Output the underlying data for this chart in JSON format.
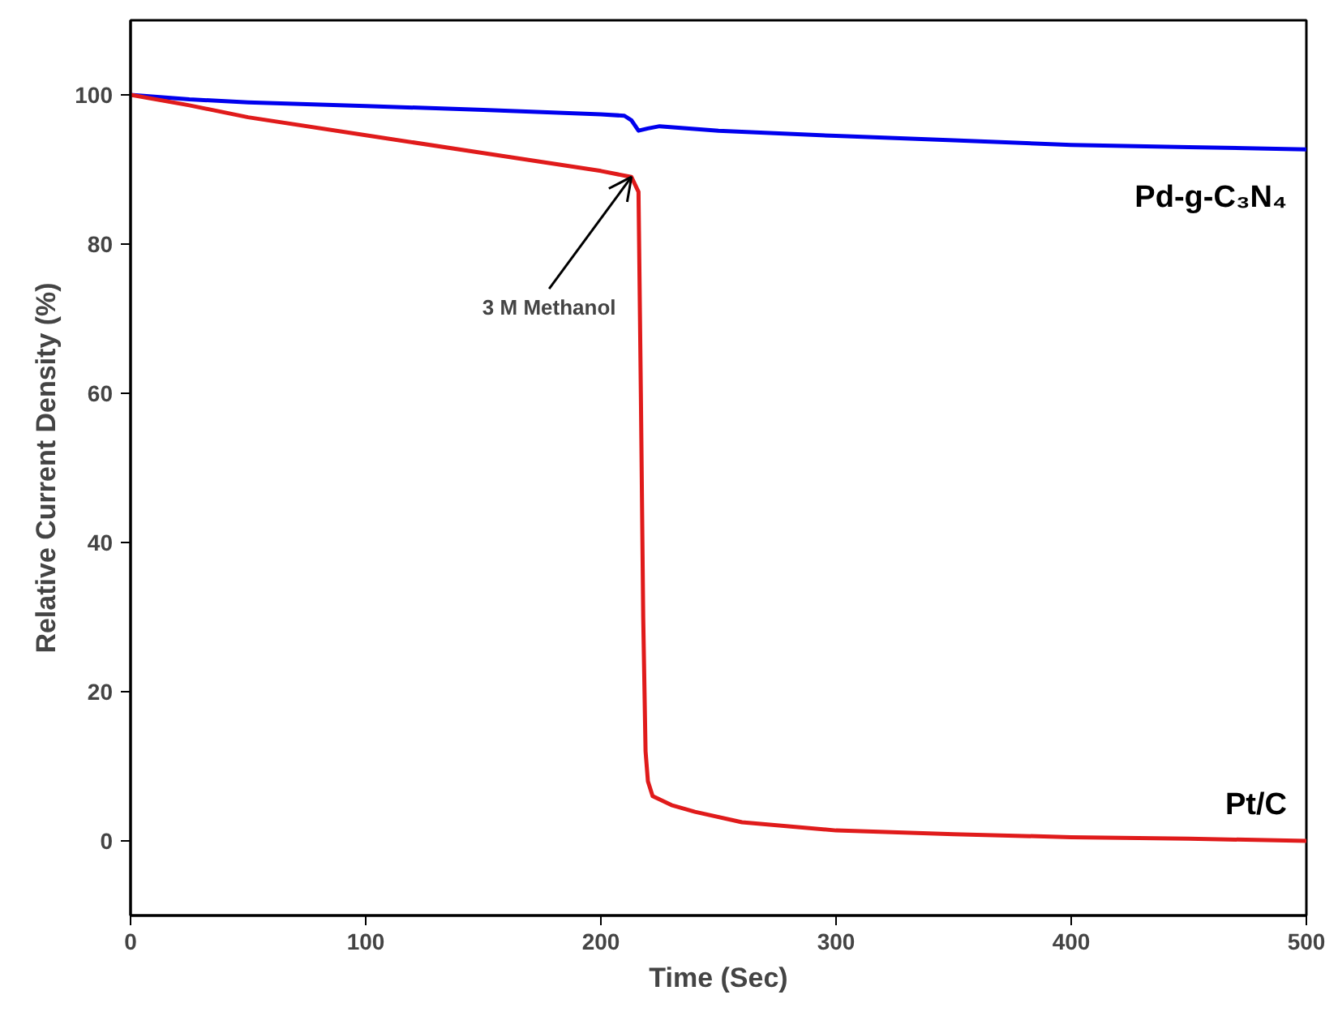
{
  "chart_data": {
    "type": "line",
    "xlabel": "Time (Sec)",
    "ylabel": "Relative Current Density (%)",
    "xlim": [
      0,
      500
    ],
    "ylim": [
      -10,
      110
    ],
    "xticks": [
      0,
      100,
      200,
      300,
      400,
      500
    ],
    "yticks": [
      0,
      20,
      40,
      60,
      80,
      100
    ],
    "grid": false,
    "legend": false,
    "marker": "none",
    "line_style": "solid",
    "series": [
      {
        "name": "Pd-g-C₃N₄",
        "color": "#0000ee",
        "x": [
          0,
          25,
          50,
          100,
          150,
          200,
          210,
          213,
          216,
          220,
          225,
          250,
          300,
          350,
          400,
          450,
          500
        ],
        "values": [
          100,
          99.4,
          99,
          98.5,
          98,
          97.4,
          97.2,
          96.6,
          95.2,
          95.5,
          95.8,
          95.2,
          94.5,
          93.9,
          93.3,
          93,
          92.7
        ]
      },
      {
        "name": "Pt/C",
        "color": "#e01b1b",
        "x": [
          0,
          25,
          50,
          100,
          150,
          200,
          213,
          216,
          217,
          218,
          219,
          220,
          222,
          230,
          240,
          260,
          300,
          350,
          400,
          450,
          500
        ],
        "values": [
          100,
          98.6,
          97,
          94.6,
          92.2,
          89.8,
          89,
          87,
          60,
          30,
          12,
          8,
          6,
          4.8,
          3.9,
          2.5,
          1.4,
          0.9,
          0.5,
          0.3,
          0
        ]
      }
    ],
    "annotations": [
      {
        "text": "3 M Methanol",
        "x": 213,
        "y": 89
      }
    ]
  }
}
